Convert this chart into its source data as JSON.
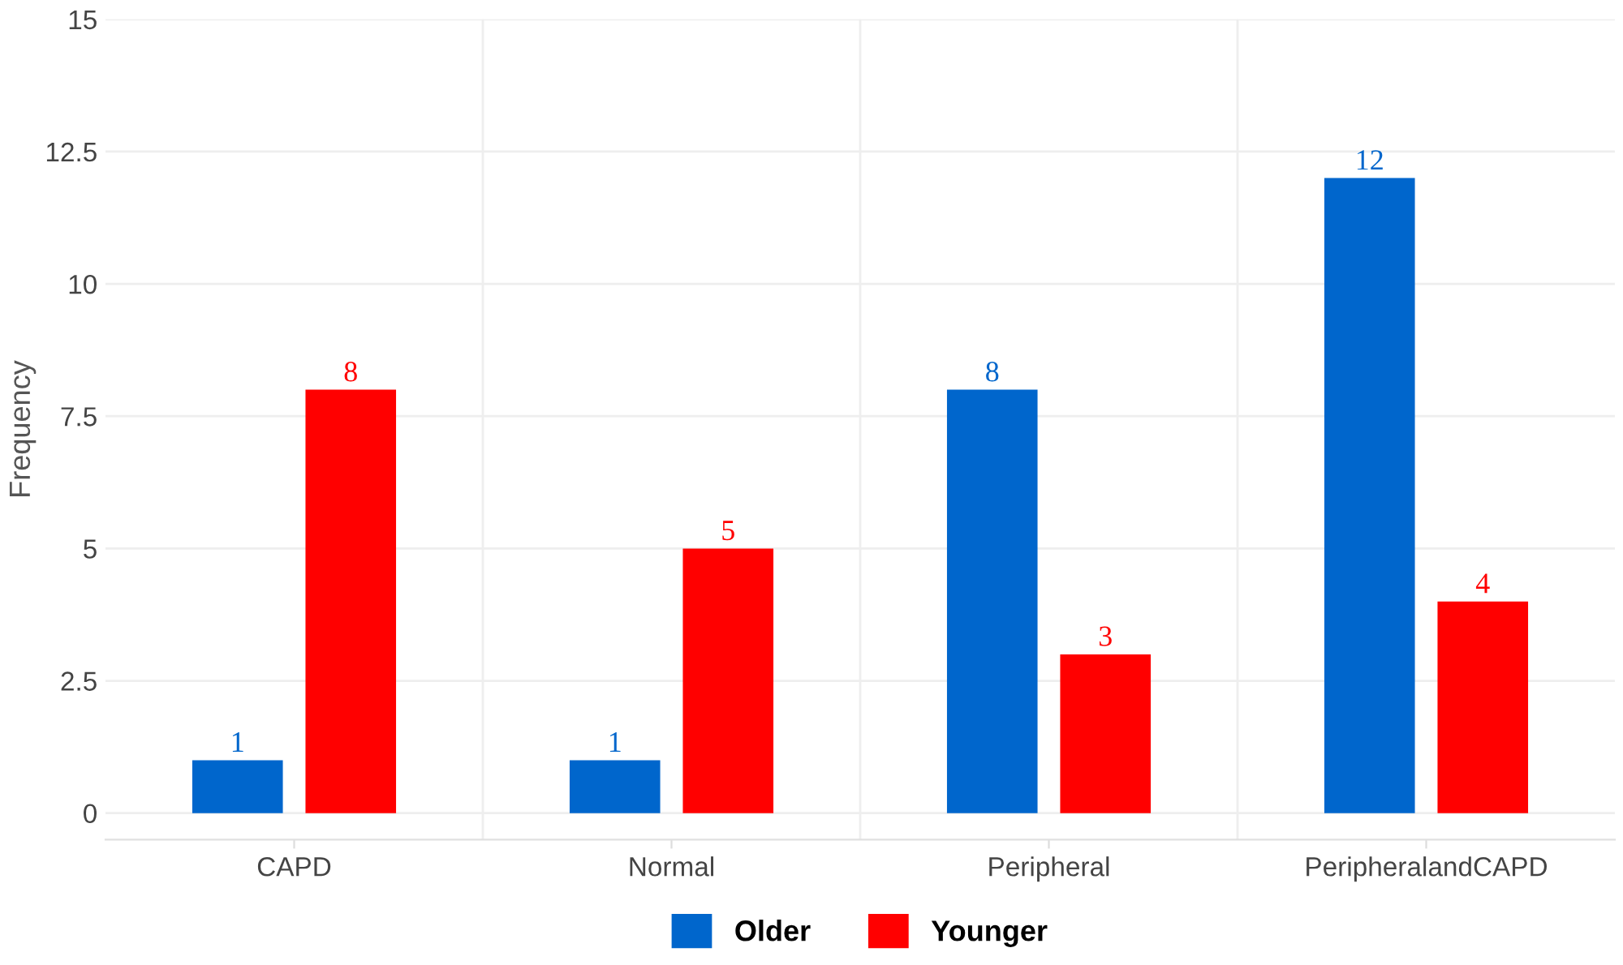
{
  "chart_data": {
    "type": "bar",
    "ylabel": "Frequency",
    "categories": [
      "CAPD",
      "Normal",
      "Peripheral",
      "PeripheralandCAPD"
    ],
    "series": [
      {
        "name": "Older",
        "color": "#0066cc",
        "values": [
          1,
          1,
          8,
          12
        ]
      },
      {
        "name": "Younger",
        "color": "#ff0000",
        "values": [
          8,
          5,
          3,
          4
        ]
      }
    ],
    "ylim": [
      -0.5,
      15
    ],
    "yticks": [
      0,
      2.5,
      5,
      7.5,
      10,
      12.5,
      15
    ],
    "grid": true,
    "legend": "bottom",
    "data_labels": true
  }
}
